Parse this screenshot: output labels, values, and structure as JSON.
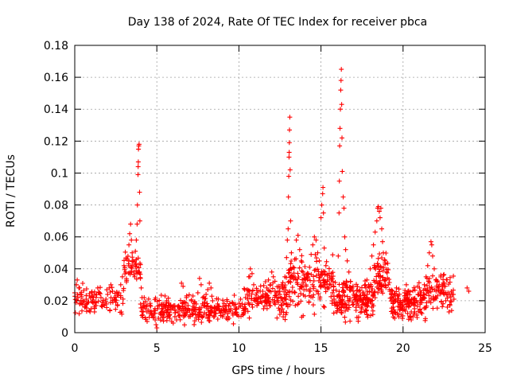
{
  "chart_data": {
    "type": "scatter",
    "title": "Day 138 of 2024, Rate Of TEC Index for receiver pbca",
    "xlabel": "GPS time / hours",
    "ylabel": "ROTI / TECUs",
    "xlim": [
      0,
      25
    ],
    "ylim": [
      0,
      0.18
    ],
    "xticks": [
      0,
      5,
      10,
      15,
      20,
      25
    ],
    "xtick_labels": [
      "0",
      "5",
      "10",
      "15",
      "20",
      "25"
    ],
    "yticks": [
      0,
      0.02,
      0.04,
      0.06,
      0.08,
      0.1,
      0.12,
      0.14,
      0.16,
      0.18
    ],
    "ytick_labels": [
      "0",
      "0.02",
      "0.04",
      "0.06",
      "0.08",
      "0.1",
      "0.12",
      "0.14",
      "0.16",
      "0.18"
    ],
    "grid": true,
    "marker": "+",
    "color": "#ff0000",
    "series": [
      {
        "name": "ROTI",
        "points": [
          [
            0.0,
            0.025
          ],
          [
            0.1,
            0.03
          ],
          [
            0.15,
            0.033
          ],
          [
            0.2,
            0.022
          ],
          [
            0.25,
            0.028
          ],
          [
            0.3,
            0.018
          ],
          [
            0.4,
            0.024
          ],
          [
            0.5,
            0.02
          ],
          [
            0.6,
            0.016
          ],
          [
            0.7,
            0.021
          ],
          [
            0.8,
            0.019
          ],
          [
            0.9,
            0.023
          ],
          [
            1.0,
            0.015
          ],
          [
            1.1,
            0.019
          ],
          [
            1.2,
            0.013
          ],
          [
            1.3,
            0.017
          ],
          [
            1.4,
            0.028
          ],
          [
            1.5,
            0.025
          ],
          [
            1.6,
            0.022
          ],
          [
            1.7,
            0.019
          ],
          [
            1.8,
            0.017
          ],
          [
            1.9,
            0.021
          ],
          [
            2.0,
            0.024
          ],
          [
            2.1,
            0.028
          ],
          [
            2.2,
            0.03
          ],
          [
            2.3,
            0.026
          ],
          [
            2.4,
            0.022
          ],
          [
            2.5,
            0.019
          ],
          [
            2.6,
            0.017
          ],
          [
            2.7,
            0.025
          ],
          [
            2.8,
            0.03
          ],
          [
            2.9,
            0.035
          ],
          [
            3.0,
            0.042
          ],
          [
            3.1,
            0.038
          ],
          [
            3.2,
            0.046
          ],
          [
            3.3,
            0.055
          ],
          [
            3.35,
            0.062
          ],
          [
            3.4,
            0.068
          ],
          [
            3.45,
            0.058
          ],
          [
            3.5,
            0.05
          ],
          [
            3.55,
            0.045
          ],
          [
            3.6,
            0.038
          ],
          [
            3.65,
            0.035
          ],
          [
            3.7,
            0.043
          ],
          [
            3.75,
            0.058
          ],
          [
            3.8,
            0.068
          ],
          [
            3.82,
            0.08
          ],
          [
            3.85,
            0.099
          ],
          [
            3.86,
            0.104
          ],
          [
            3.87,
            0.107
          ],
          [
            3.88,
            0.115
          ],
          [
            3.9,
            0.117
          ],
          [
            3.92,
            0.118
          ],
          [
            3.95,
            0.088
          ],
          [
            3.97,
            0.07
          ],
          [
            4.0,
            0.034
          ],
          [
            4.05,
            0.028
          ],
          [
            4.1,
            0.022
          ],
          [
            4.2,
            0.017
          ],
          [
            4.3,
            0.015
          ],
          [
            4.4,
            0.013
          ],
          [
            4.5,
            0.014
          ],
          [
            4.6,
            0.012
          ],
          [
            4.7,
            0.011
          ],
          [
            4.8,
            0.01
          ],
          [
            4.9,
            0.008
          ],
          [
            4.95,
            0.005
          ],
          [
            5.0,
            0.003
          ],
          [
            5.1,
            0.009
          ],
          [
            5.2,
            0.012
          ],
          [
            5.3,
            0.015
          ],
          [
            5.4,
            0.011
          ],
          [
            5.5,
            0.023
          ],
          [
            5.6,
            0.02
          ],
          [
            5.7,
            0.017
          ],
          [
            5.8,
            0.009
          ],
          [
            5.9,
            0.007
          ],
          [
            6.0,
            0.006
          ],
          [
            6.1,
            0.01
          ],
          [
            6.2,
            0.008
          ],
          [
            6.3,
            0.013
          ],
          [
            6.4,
            0.011
          ],
          [
            6.5,
            0.031
          ],
          [
            6.6,
            0.029
          ],
          [
            6.7,
            0.019
          ],
          [
            6.8,
            0.022
          ],
          [
            6.9,
            0.017
          ],
          [
            7.0,
            0.014
          ],
          [
            7.1,
            0.02
          ],
          [
            7.2,
            0.023
          ],
          [
            7.3,
            0.019
          ],
          [
            7.4,
            0.018
          ],
          [
            7.5,
            0.025
          ],
          [
            7.6,
            0.034
          ],
          [
            7.7,
            0.03
          ],
          [
            7.8,
            0.022
          ],
          [
            7.9,
            0.019
          ],
          [
            8.0,
            0.024
          ],
          [
            8.1,
            0.027
          ],
          [
            8.2,
            0.031
          ],
          [
            8.3,
            0.028
          ],
          [
            8.4,
            0.02
          ],
          [
            8.5,
            0.016
          ],
          [
            8.6,
            0.012
          ],
          [
            8.7,
            0.018
          ],
          [
            8.8,
            0.015
          ],
          [
            8.9,
            0.013
          ],
          [
            9.0,
            0.01
          ],
          [
            9.1,
            0.014
          ],
          [
            9.2,
            0.017
          ],
          [
            9.3,
            0.012
          ],
          [
            9.4,
            0.009
          ],
          [
            9.5,
            0.015
          ],
          [
            9.6,
            0.019
          ],
          [
            9.7,
            0.017
          ],
          [
            9.8,
            0.013
          ],
          [
            9.9,
            0.011
          ],
          [
            10.0,
            0.016
          ],
          [
            10.1,
            0.021
          ],
          [
            10.2,
            0.018
          ],
          [
            10.3,
            0.012
          ],
          [
            10.4,
            0.022
          ],
          [
            10.5,
            0.027
          ],
          [
            10.6,
            0.035
          ],
          [
            10.7,
            0.04
          ],
          [
            10.8,
            0.037
          ],
          [
            10.9,
            0.03
          ],
          [
            11.0,
            0.02
          ],
          [
            11.1,
            0.017
          ],
          [
            11.2,
            0.022
          ],
          [
            11.3,
            0.026
          ],
          [
            11.4,
            0.019
          ],
          [
            11.5,
            0.015
          ],
          [
            11.6,
            0.02
          ],
          [
            11.7,
            0.028
          ],
          [
            11.8,
            0.033
          ],
          [
            11.9,
            0.03
          ],
          [
            12.0,
            0.038
          ],
          [
            12.1,
            0.035
          ],
          [
            12.2,
            0.026
          ],
          [
            12.3,
            0.022
          ],
          [
            12.4,
            0.019
          ],
          [
            12.5,
            0.024
          ],
          [
            12.6,
            0.03
          ],
          [
            12.7,
            0.028
          ],
          [
            12.8,
            0.035
          ],
          [
            12.9,
            0.047
          ],
          [
            12.95,
            0.058
          ],
          [
            13.0,
            0.065
          ],
          [
            13.02,
            0.085
          ],
          [
            13.04,
            0.098
          ],
          [
            13.05,
            0.11
          ],
          [
            13.06,
            0.113
          ],
          [
            13.07,
            0.119
          ],
          [
            13.08,
            0.127
          ],
          [
            13.1,
            0.135
          ],
          [
            13.12,
            0.102
          ],
          [
            13.15,
            0.07
          ],
          [
            13.2,
            0.05
          ],
          [
            13.3,
            0.041
          ],
          [
            13.4,
            0.046
          ],
          [
            13.5,
            0.058
          ],
          [
            13.6,
            0.061
          ],
          [
            13.7,
            0.052
          ],
          [
            13.8,
            0.045
          ],
          [
            13.9,
            0.038
          ],
          [
            14.0,
            0.033
          ],
          [
            14.1,
            0.027
          ],
          [
            14.2,
            0.035
          ],
          [
            14.3,
            0.041
          ],
          [
            14.4,
            0.049
          ],
          [
            14.5,
            0.055
          ],
          [
            14.6,
            0.06
          ],
          [
            14.7,
            0.058
          ],
          [
            14.8,
            0.05
          ],
          [
            14.9,
            0.045
          ],
          [
            15.0,
            0.072
          ],
          [
            15.05,
            0.08
          ],
          [
            15.1,
            0.087
          ],
          [
            15.12,
            0.091
          ],
          [
            15.15,
            0.075
          ],
          [
            15.2,
            0.053
          ],
          [
            15.3,
            0.042
          ],
          [
            15.4,
            0.036
          ],
          [
            15.5,
            0.028
          ],
          [
            15.6,
            0.03
          ],
          [
            15.7,
            0.025
          ],
          [
            15.8,
            0.021
          ],
          [
            15.9,
            0.019
          ],
          [
            16.0,
            0.023
          ],
          [
            16.05,
            0.048
          ],
          [
            16.1,
            0.075
          ],
          [
            16.12,
            0.095
          ],
          [
            16.14,
            0.117
          ],
          [
            16.16,
            0.128
          ],
          [
            16.18,
            0.14
          ],
          [
            16.2,
            0.152
          ],
          [
            16.22,
            0.158
          ],
          [
            16.24,
            0.165
          ],
          [
            16.26,
            0.143
          ],
          [
            16.28,
            0.122
          ],
          [
            16.3,
            0.101
          ],
          [
            16.35,
            0.085
          ],
          [
            16.4,
            0.078
          ],
          [
            16.45,
            0.06
          ],
          [
            16.5,
            0.052
          ],
          [
            16.6,
            0.045
          ],
          [
            16.7,
            0.038
          ],
          [
            16.8,
            0.032
          ],
          [
            16.9,
            0.028
          ],
          [
            17.0,
            0.024
          ],
          [
            17.1,
            0.021
          ],
          [
            17.2,
            0.018
          ],
          [
            17.3,
            0.026
          ],
          [
            17.4,
            0.022
          ],
          [
            17.5,
            0.019
          ],
          [
            17.6,
            0.025
          ],
          [
            17.7,
            0.03
          ],
          [
            17.8,
            0.033
          ],
          [
            17.9,
            0.029
          ],
          [
            18.0,
            0.04
          ],
          [
            18.1,
            0.048
          ],
          [
            18.2,
            0.055
          ],
          [
            18.3,
            0.063
          ],
          [
            18.4,
            0.07
          ],
          [
            18.45,
            0.078
          ],
          [
            18.5,
            0.079
          ],
          [
            18.55,
            0.076
          ],
          [
            18.6,
            0.072
          ],
          [
            18.65,
            0.078
          ],
          [
            18.7,
            0.065
          ],
          [
            18.75,
            0.057
          ],
          [
            18.8,
            0.05
          ],
          [
            18.9,
            0.045
          ],
          [
            19.0,
            0.038
          ],
          [
            19.1,
            0.03
          ],
          [
            19.2,
            0.026
          ],
          [
            19.3,
            0.022
          ],
          [
            19.4,
            0.019
          ],
          [
            19.5,
            0.024
          ],
          [
            19.6,
            0.028
          ],
          [
            19.7,
            0.023
          ],
          [
            19.8,
            0.018
          ],
          [
            19.9,
            0.015
          ],
          [
            20.0,
            0.02
          ],
          [
            20.1,
            0.025
          ],
          [
            20.2,
            0.03
          ],
          [
            20.3,
            0.026
          ],
          [
            20.4,
            0.018
          ],
          [
            20.5,
            0.013
          ],
          [
            20.6,
            0.01
          ],
          [
            20.7,
            0.015
          ],
          [
            20.8,
            0.02
          ],
          [
            20.9,
            0.024
          ],
          [
            21.0,
            0.028
          ],
          [
            21.1,
            0.025
          ],
          [
            21.2,
            0.022
          ],
          [
            21.3,
            0.03
          ],
          [
            21.4,
            0.035
          ],
          [
            21.5,
            0.042
          ],
          [
            21.6,
            0.05
          ],
          [
            21.7,
            0.057
          ],
          [
            21.75,
            0.055
          ],
          [
            21.8,
            0.048
          ],
          [
            21.9,
            0.04
          ],
          [
            22.0,
            0.033
          ],
          [
            22.1,
            0.028
          ],
          [
            22.2,
            0.03
          ],
          [
            22.3,
            0.036
          ],
          [
            22.4,
            0.03
          ],
          [
            22.5,
            0.024
          ],
          [
            22.6,
            0.02
          ],
          [
            22.7,
            0.016
          ],
          [
            22.8,
            0.013
          ],
          [
            22.9,
            0.02
          ],
          [
            23.0,
            0.024
          ],
          [
            23.1,
            0.021
          ],
          [
            23.9,
            0.028
          ],
          [
            24.0,
            0.026
          ]
        ],
        "clusters": [
          {
            "x_range": [
              0.0,
              3.0
            ],
            "y_center": 0.02,
            "y_spread": 0.008,
            "count": 90
          },
          {
            "x_range": [
              3.0,
              4.0
            ],
            "y_center": 0.04,
            "y_spread": 0.01,
            "count": 45
          },
          {
            "x_range": [
              4.0,
              10.3
            ],
            "y_center": 0.014,
            "y_spread": 0.007,
            "count": 260
          },
          {
            "x_range": [
              10.3,
              13.0
            ],
            "y_center": 0.022,
            "y_spread": 0.01,
            "count": 130
          },
          {
            "x_range": [
              13.0,
              15.8
            ],
            "y_center": 0.03,
            "y_spread": 0.014,
            "count": 160
          },
          {
            "x_range": [
              15.8,
              18.2
            ],
            "y_center": 0.02,
            "y_spread": 0.011,
            "count": 170
          },
          {
            "x_range": [
              18.2,
              19.2
            ],
            "y_center": 0.035,
            "y_spread": 0.013,
            "count": 70
          },
          {
            "x_range": [
              19.2,
              21.4
            ],
            "y_center": 0.018,
            "y_spread": 0.009,
            "count": 140
          },
          {
            "x_range": [
              21.4,
              23.1
            ],
            "y_center": 0.025,
            "y_spread": 0.01,
            "count": 80
          }
        ]
      }
    ]
  }
}
